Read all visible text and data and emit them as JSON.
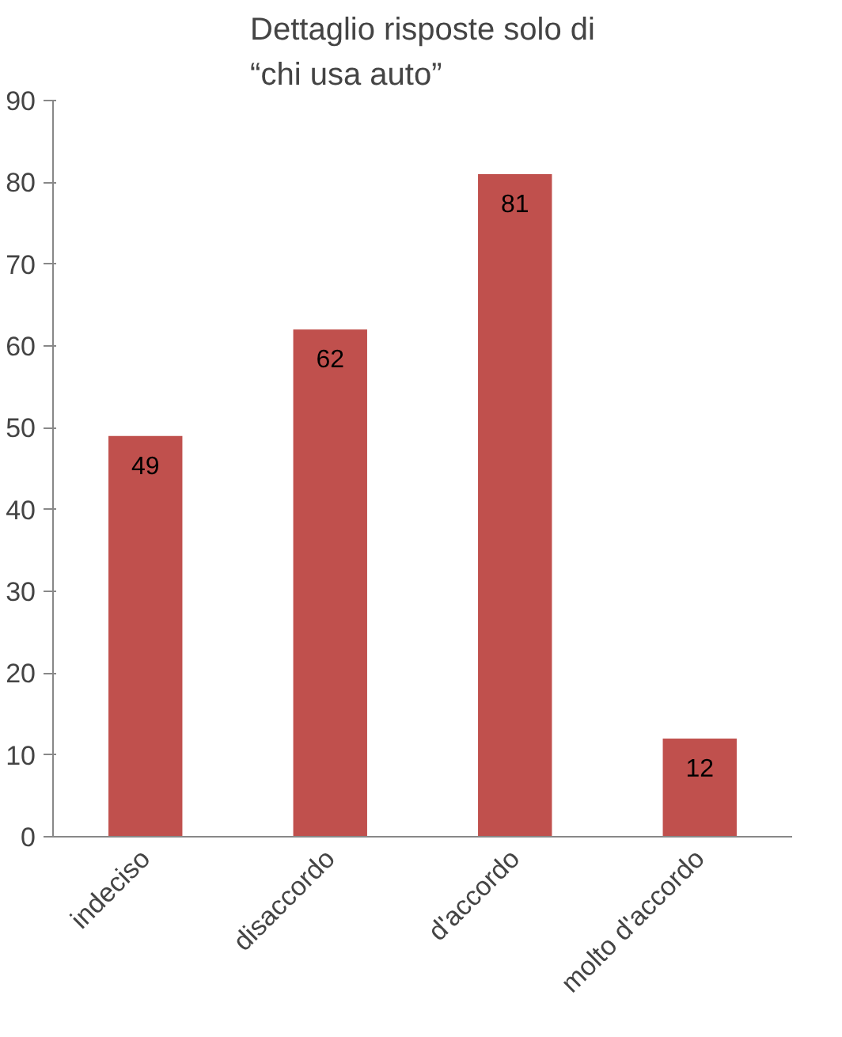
{
  "chart_data": {
    "type": "bar",
    "title": "Dettaglio risposte solo di\n“chi usa auto”",
    "categories": [
      "indeciso",
      "disaccordo",
      "d'accordo",
      "molto d'accordo"
    ],
    "values": [
      49,
      62,
      81,
      12
    ],
    "color": "#c0504d",
    "ylim": [
      0,
      90
    ],
    "yticks": [
      0,
      10,
      20,
      30,
      40,
      50,
      60,
      70,
      80,
      90
    ],
    "grid": false,
    "data_labels": true
  }
}
